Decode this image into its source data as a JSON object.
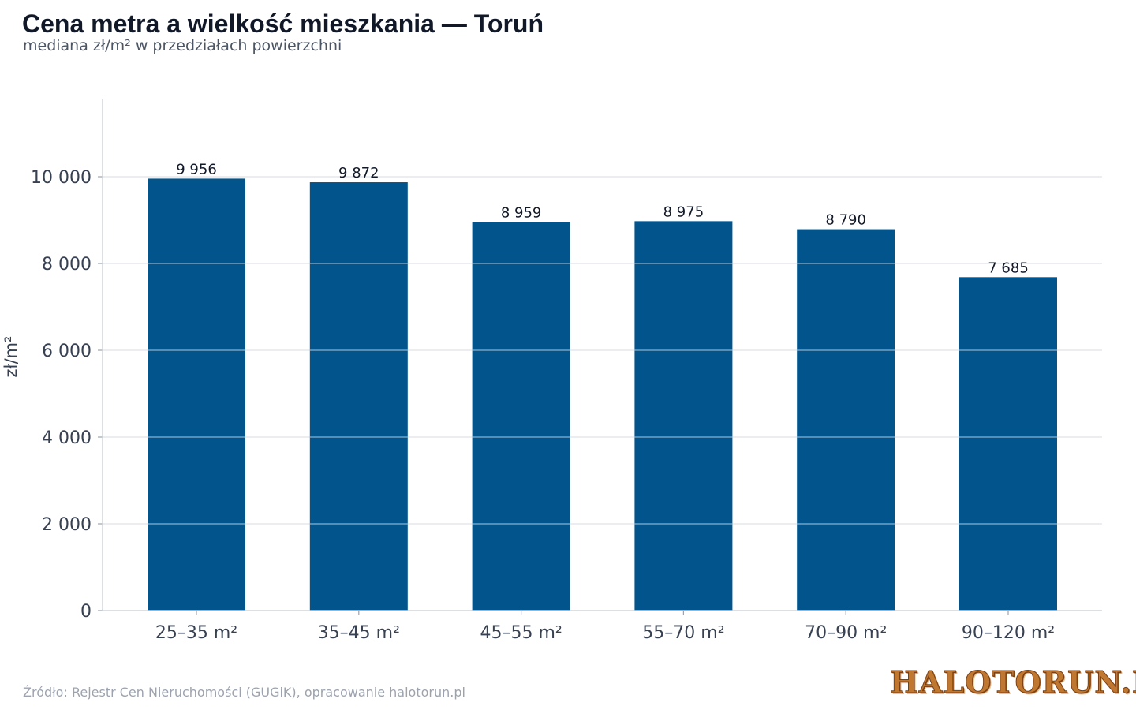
{
  "chart_data": {
    "type": "bar",
    "title": "Cena metra a wielkość mieszkania — Toruń",
    "subtitle": "mediana zł/m² w przedziałach powierzchni",
    "xlabel": "",
    "ylabel": "zł/m²",
    "ylim": [
      0,
      11800
    ],
    "yticks": [
      0,
      2000,
      4000,
      6000,
      8000,
      10000
    ],
    "ytick_labels": [
      "0",
      "2 000",
      "4 000",
      "6 000",
      "8 000",
      "10 000"
    ],
    "categories": [
      "25–35 m²",
      "35–45 m²",
      "45–55 m²",
      "55–70 m²",
      "70–90 m²",
      "90–120 m²"
    ],
    "values": [
      9956,
      9872,
      8959,
      8975,
      8790,
      7685
    ],
    "value_labels": [
      "9 956",
      "9 872",
      "8 959",
      "8 975",
      "8 790",
      "7 685"
    ],
    "bar_color": "#02548c",
    "grid": "horizontal"
  },
  "footer": {
    "source": "Źródło: Rejestr Cen Nieruchomości (GUGiK), opracowanie halotorun.pl",
    "logo_text": "HaloToruń.pl"
  }
}
